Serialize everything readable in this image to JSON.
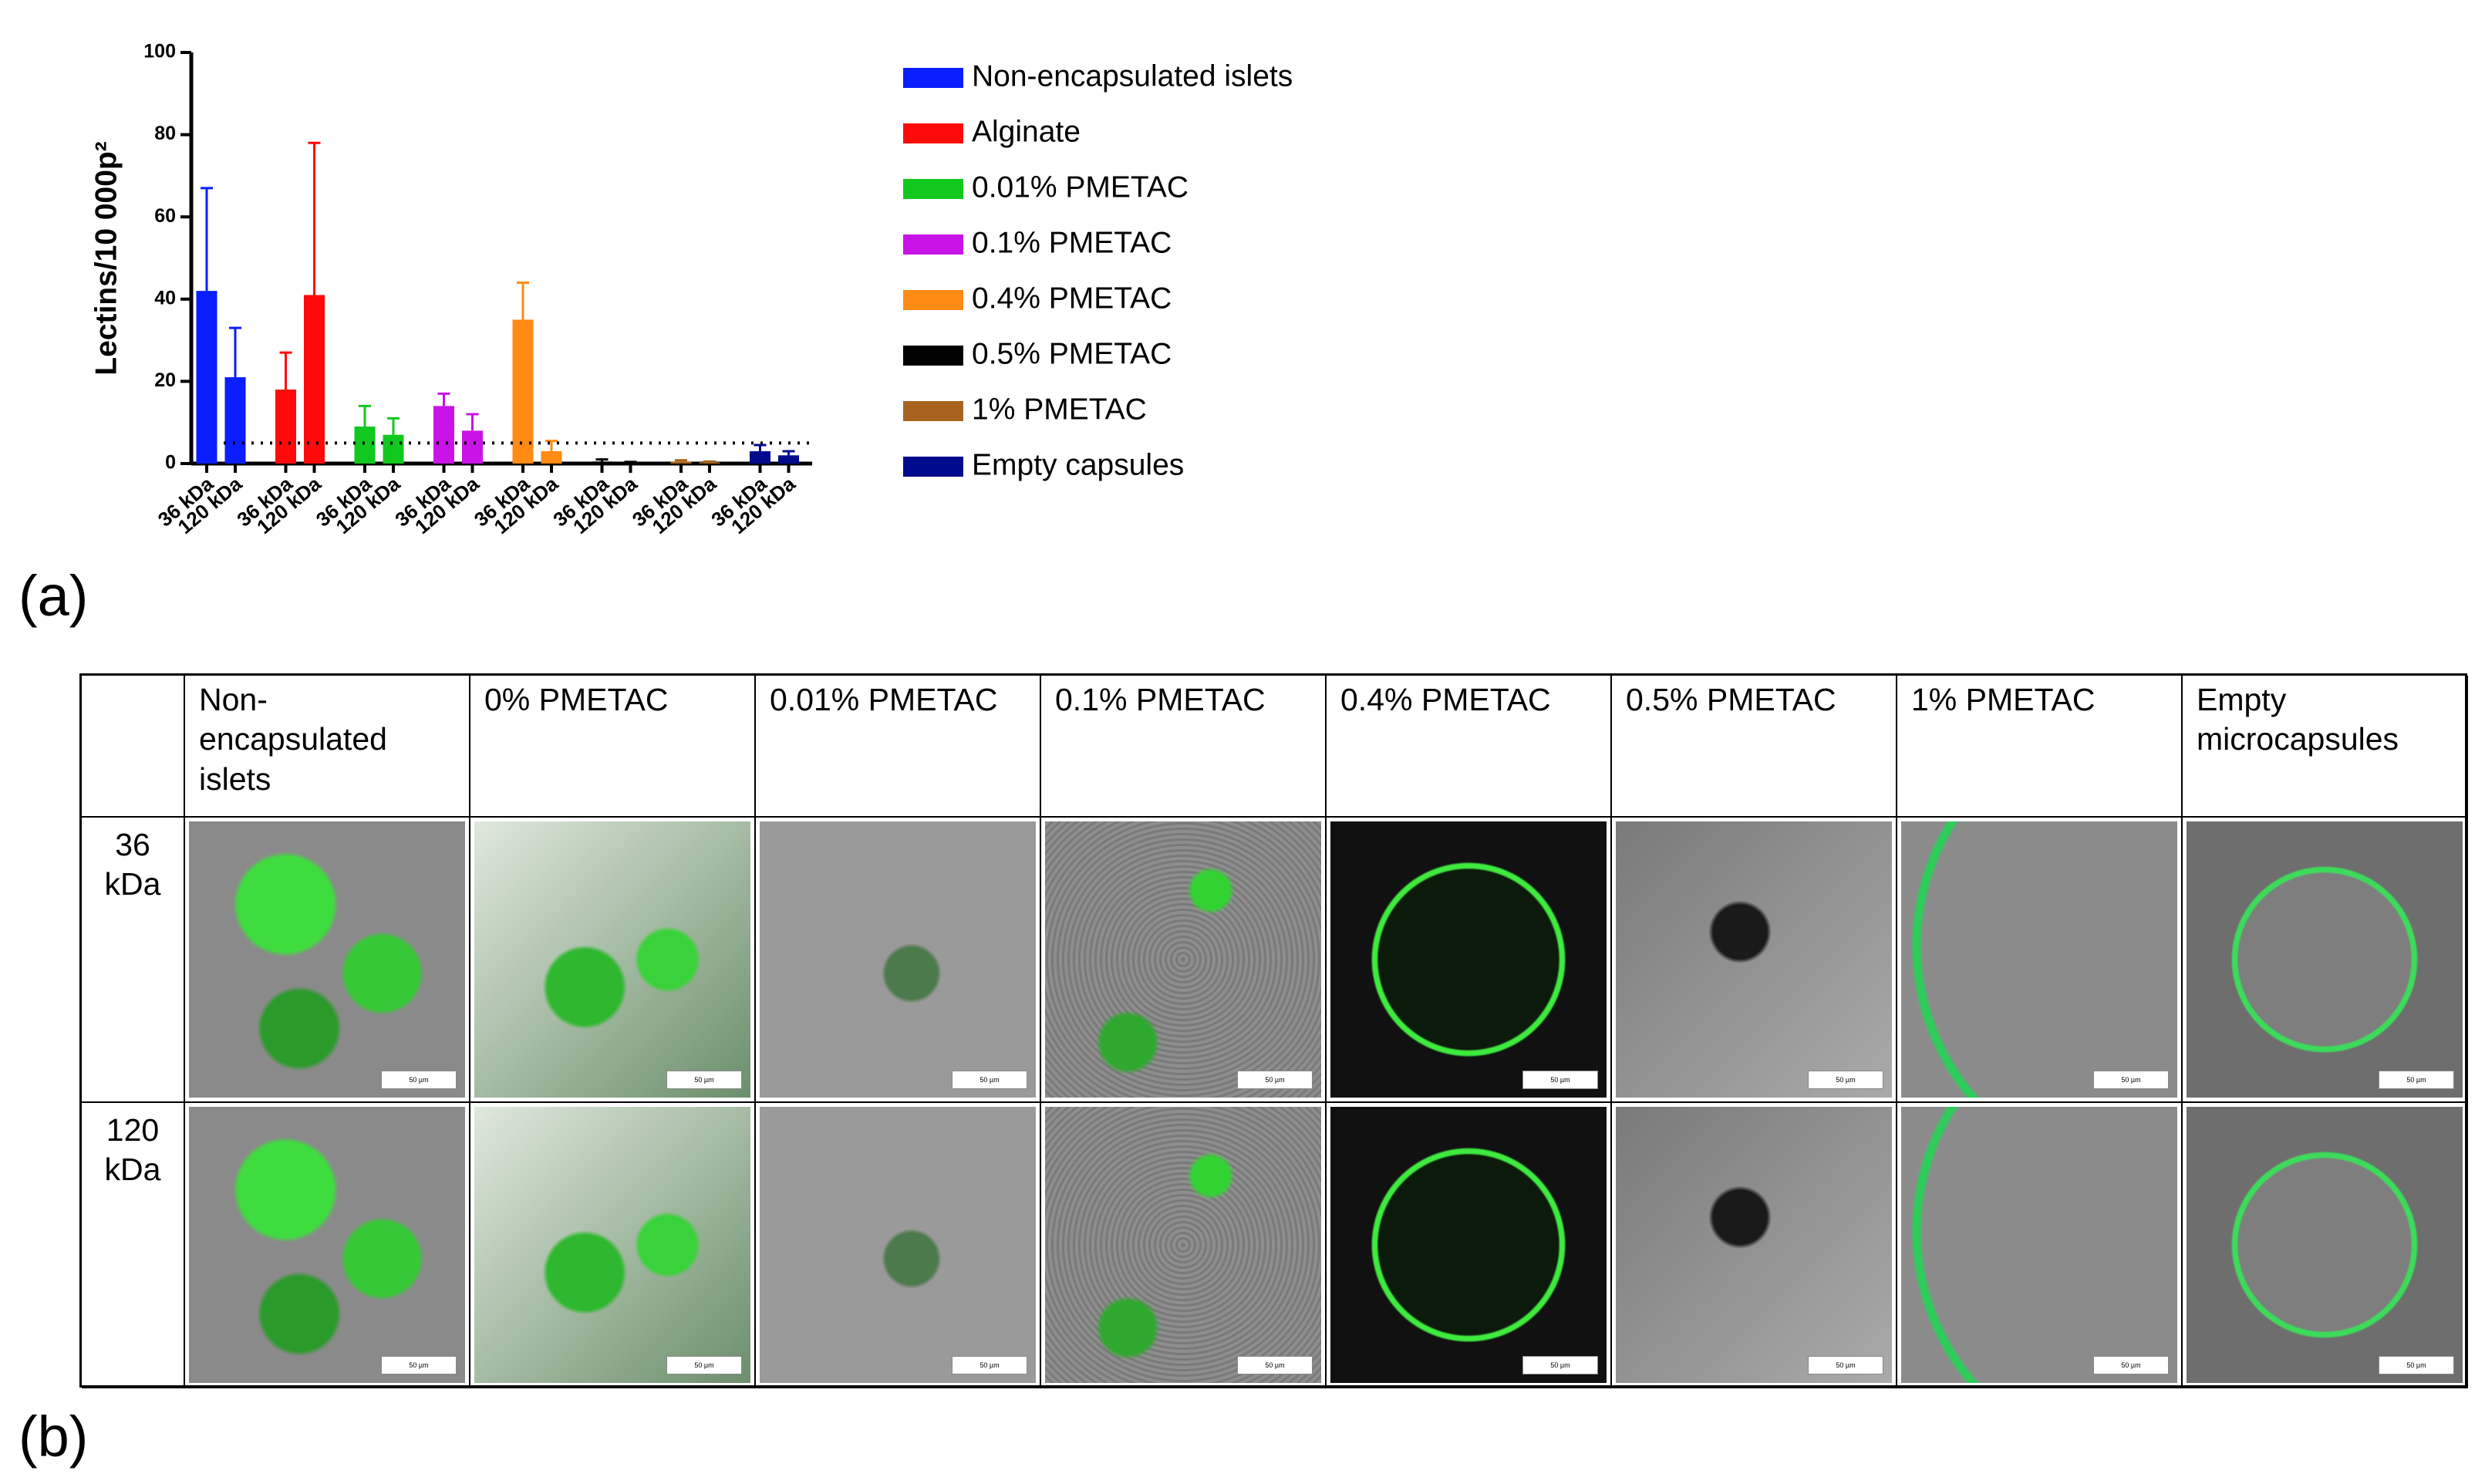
{
  "chart_data": {
    "type": "bar",
    "y_label": "Lectins/10 000p²",
    "categories": [
      "36 kDa",
      "120 kDa"
    ],
    "series": [
      {
        "name": "Non-encapsulated islets",
        "color": "#0a1eff",
        "values": [
          42,
          21
        ],
        "errors": [
          25,
          12
        ]
      },
      {
        "name": "Alginate",
        "color": "#ff0a0a",
        "values": [
          18,
          41
        ],
        "errors": [
          9,
          37
        ]
      },
      {
        "name": "0.01% PMETAC",
        "color": "#12c81e",
        "values": [
          9,
          7
        ],
        "errors": [
          5,
          4
        ]
      },
      {
        "name": "0.1% PMETAC",
        "color": "#c814e6",
        "values": [
          14,
          8
        ],
        "errors": [
          3,
          4
        ]
      },
      {
        "name": "0.4% PMETAC",
        "color": "#ff8a14",
        "values": [
          35,
          3
        ],
        "errors": [
          9,
          2.5
        ]
      },
      {
        "name": "0.5% PMETAC",
        "color": "#000000",
        "values": [
          0.5,
          0.2
        ],
        "errors": [
          0.5,
          0.2
        ]
      },
      {
        "name": "1% PMETAC",
        "color": "#a8641e",
        "values": [
          0.5,
          0.3
        ],
        "errors": [
          0.3,
          0.2
        ]
      },
      {
        "name": "Empty capsules",
        "color": "#000a8c",
        "values": [
          3,
          2
        ],
        "errors": [
          1.5,
          1
        ]
      }
    ],
    "threshold": 5,
    "ylim": [
      0,
      100
    ],
    "yticks": [
      0,
      20,
      40,
      60,
      80,
      100
    ]
  },
  "panel_labels": [
    "(a)",
    "(b)"
  ],
  "table": {
    "header": [
      "Non-encapsulated islets",
      "0% PMETAC",
      "0.01% PMETAC",
      "0.1% PMETAC",
      "0.4% PMETAC",
      "0.5% PMETAC",
      "1% PMETAC",
      "Empty microcapsules"
    ],
    "rows": [
      "36 kDa",
      "120 kDa"
    ],
    "scale_bar": "50 µm"
  }
}
